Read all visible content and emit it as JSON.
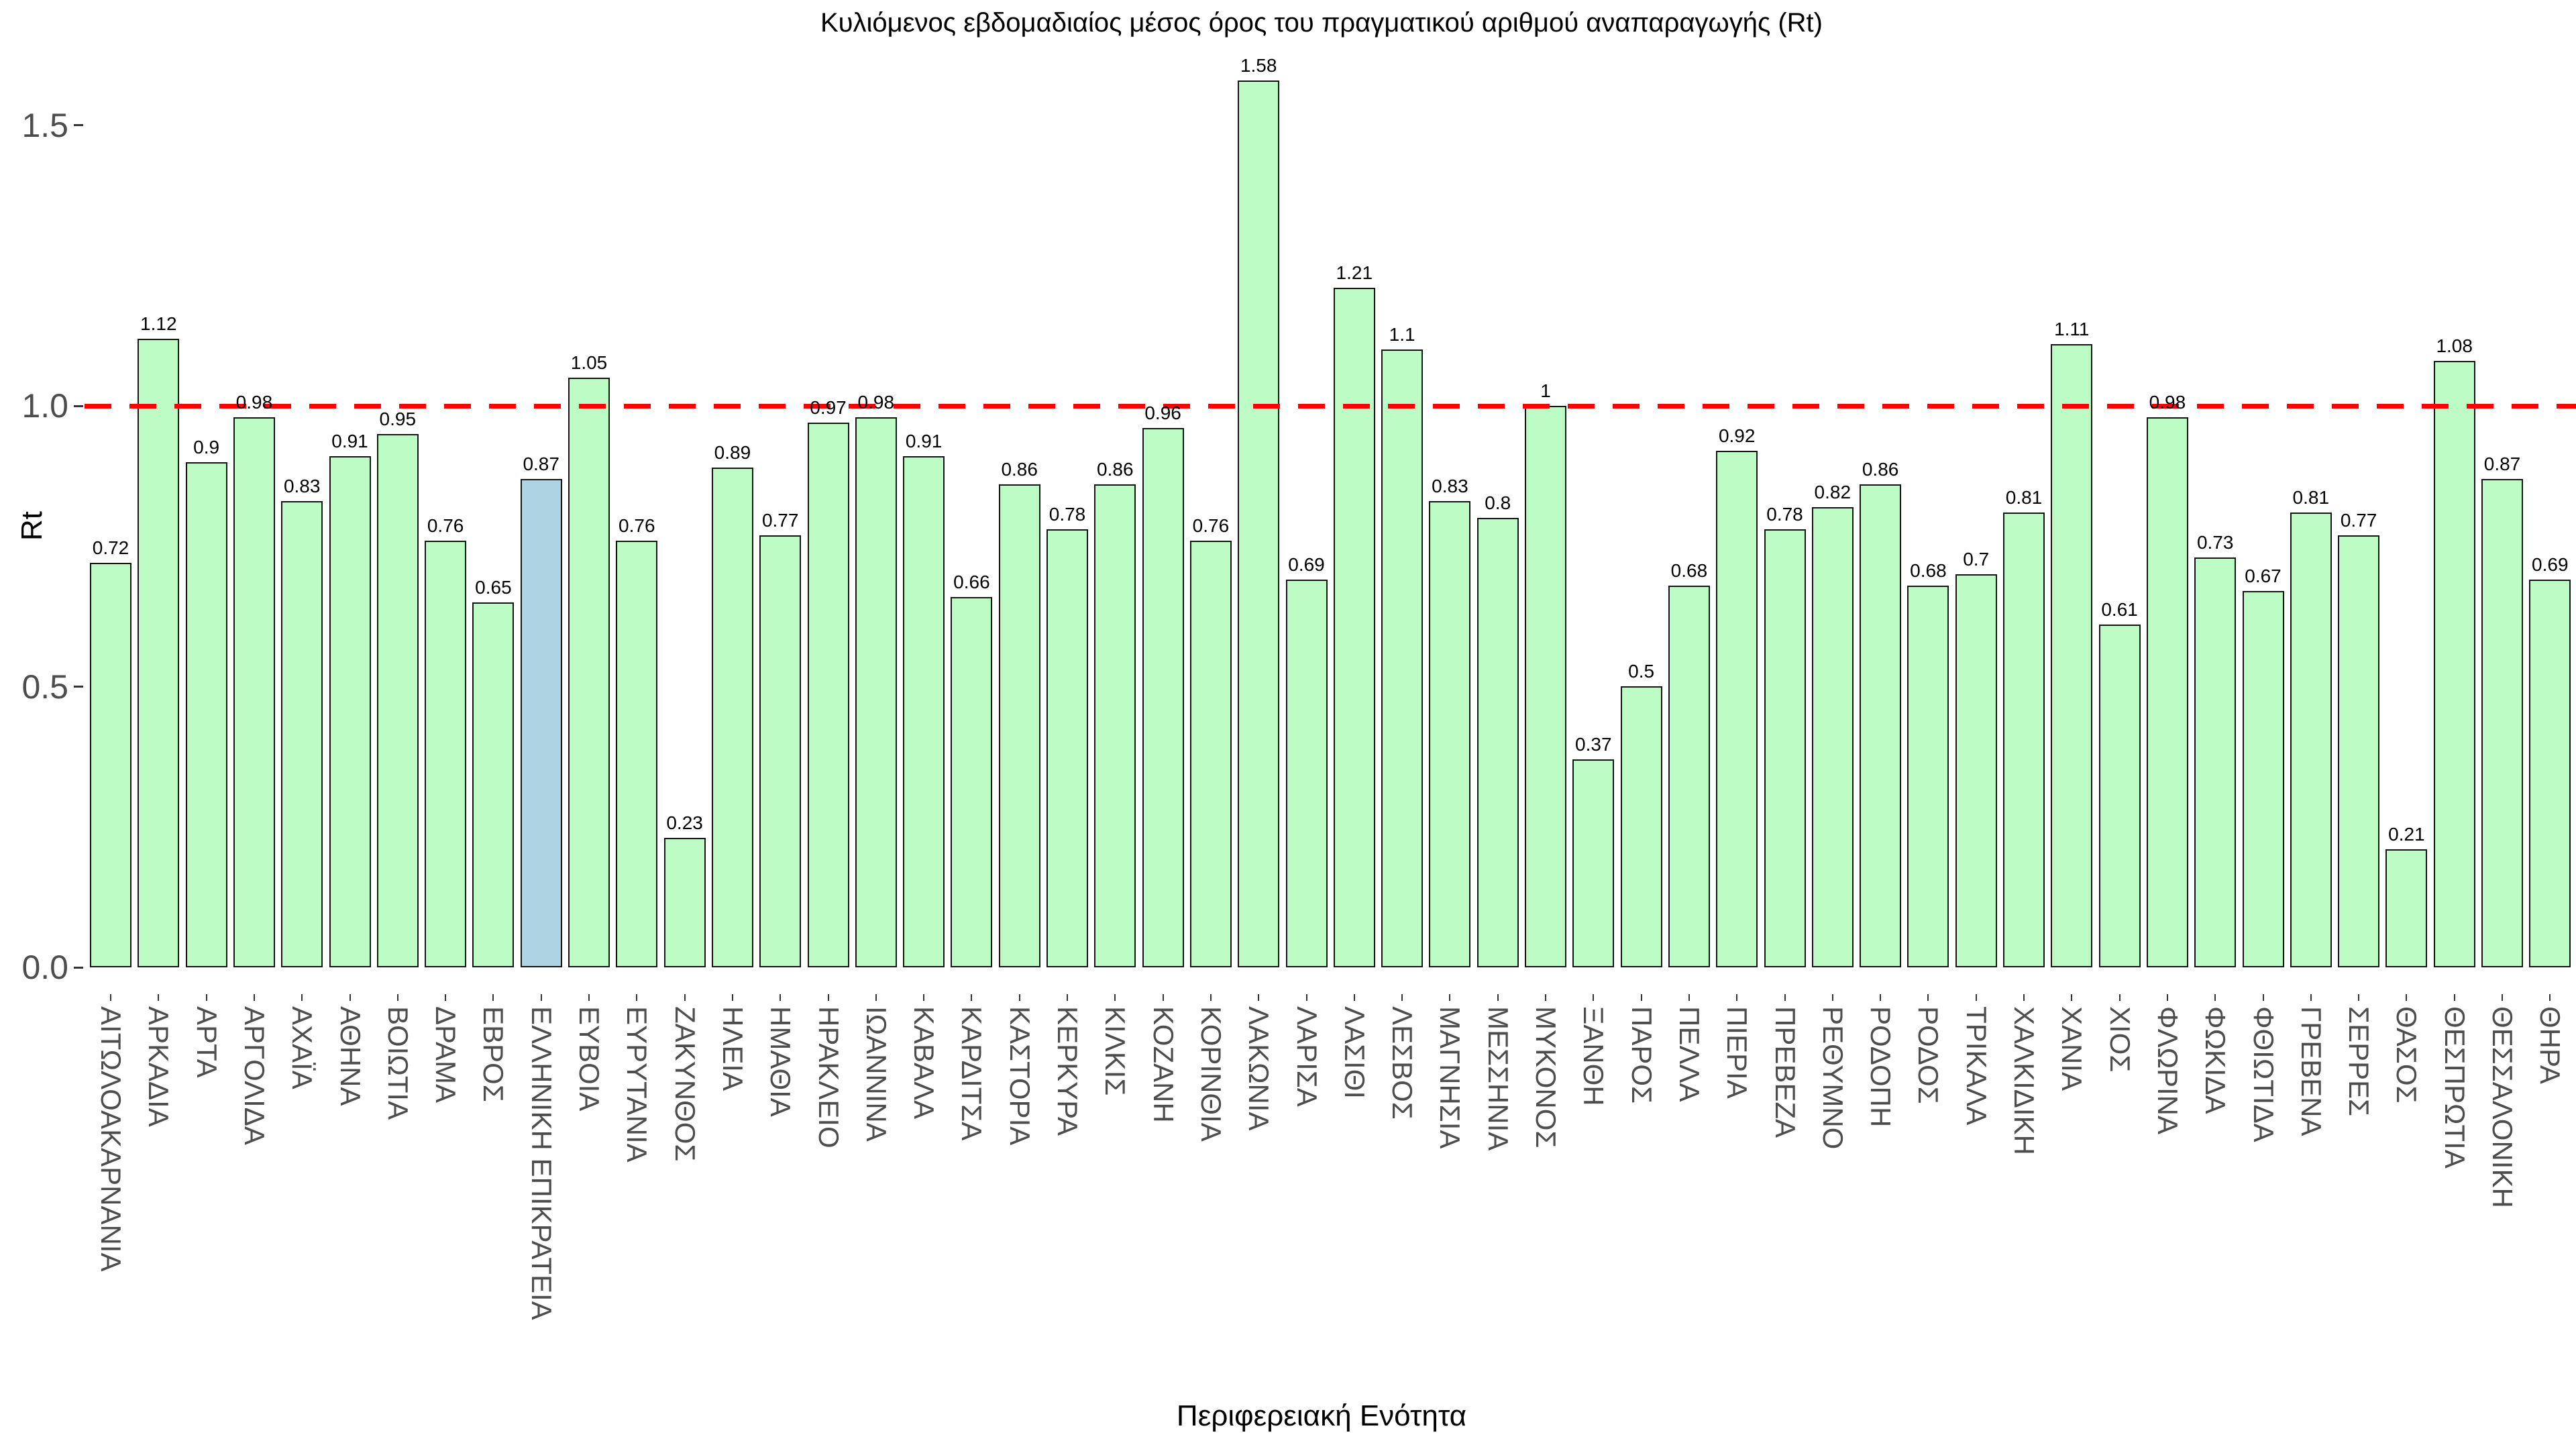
{
  "chart_data": {
    "type": "bar",
    "title": "Κυλιόμενος εβδομαδιαίος μέσος όρος του πραγματικού αριθμού αναπαραγωγής (Rt)",
    "xlabel": "Περιφερειακή Ενότητα",
    "ylabel": "Rt",
    "categories": [
      "ΑΙΤΩΛΟΑΚΑΡΝΑΝΙΑ",
      "ΑΡΚΑΔΙΑ",
      "ΑΡΤΑ",
      "ΑΡΓΟΛΙΔΑ",
      "ΑΧΑΪΑ",
      "ΑΘΗΝΑ",
      "ΒΟΙΩΤΙΑ",
      "ΔΡΑΜΑ",
      "ΕΒΡΟΣ",
      "ΕΛΛΗΝΙΚΗ ΕΠΙΚΡΑΤΕΙΑ",
      "ΕΥΒΟΙΑ",
      "ΕΥΡΥΤΑΝΙΑ",
      "ΖΑΚΥΝΘΟΣ",
      "ΗΛΕΙΑ",
      "ΗΜΑΘΙΑ",
      "ΗΡΑΚΛΕΙΟ",
      "ΙΩΑΝΝΙΝΑ",
      "ΚΑΒΑΛΑ",
      "ΚΑΡΔΙΤΣΑ",
      "ΚΑΣΤΟΡΙΑ",
      "ΚΕΡΚΥΡΑ",
      "ΚΙΛΚΙΣ",
      "ΚΟΖΑΝΗ",
      "ΚΟΡΙΝΘΙΑ",
      "ΛΑΚΩΝΙΑ",
      "ΛΑΡΙΣΑ",
      "ΛΑΣΙΘΙ",
      "ΛΕΣΒΟΣ",
      "ΜΑΓΝΗΣΙΑ",
      "ΜΕΣΣΗΝΙΑ",
      "ΜΥΚΟΝΟΣ",
      "ΞΑΝΘΗ",
      "ΠΑΡΟΣ",
      "ΠΕΛΛΑ",
      "ΠΙΕΡΙΑ",
      "ΠΡΕΒΕΖΑ",
      "ΡΕΘΥΜΝΟ",
      "ΡΟΔΟΠΗ",
      "ΡΟΔΟΣ",
      "ΤΡΙΚΑΛΑ",
      "ΧΑΛΚΙΔΙΚΗ",
      "ΧΑΝΙΑ",
      "ΧΙΟΣ",
      "ΦΛΩΡΙΝΑ",
      "ΦΩΚΙΔΑ",
      "ΦΘΙΩΤΙΔΑ",
      "ΓΡΕΒΕΝΑ",
      "ΣΕΡΡΕΣ",
      "ΘΑΣΟΣ",
      "ΘΕΣΠΡΩΤΙΑ",
      "ΘΕΣΣΑΛΟΝΙΚΗ",
      "ΘΗΡΑ"
    ],
    "values": [
      0.72,
      1.12,
      0.9,
      0.98,
      0.83,
      0.91,
      0.95,
      0.76,
      0.65,
      0.87,
      1.05,
      0.76,
      0.23,
      0.89,
      0.77,
      0.97,
      0.98,
      0.91,
      0.66,
      0.86,
      0.78,
      0.86,
      0.96,
      0.76,
      1.58,
      0.69,
      1.21,
      1.1,
      0.83,
      0.8,
      1,
      0.37,
      0.5,
      0.68,
      0.92,
      0.78,
      0.82,
      0.86,
      0.68,
      0.7,
      0.81,
      1.11,
      0.61,
      0.98,
      0.73,
      0.67,
      0.81,
      0.77,
      0.21,
      1.08,
      0.87,
      0.69
    ],
    "highlight_index": 9,
    "highlight_category": "ΕΛΛΗΝΙΚΗ ΕΠΙΚΡΑΤΕΙΑ",
    "ylim": [
      0,
      1.65
    ],
    "ytick_values": [
      0,
      0.5,
      1,
      1.5
    ],
    "ytick_labels": [
      "0.0",
      "0.5",
      "1.0",
      "1.5"
    ],
    "grid": false,
    "legend": "none",
    "value_labels": true,
    "reference_line": {
      "y": 1.0,
      "color": "#ff0000",
      "style": "dashed"
    },
    "colors": {
      "bar_fill": "#befcc6",
      "bar_border": "#141414",
      "highlight_fill": "#aed4e3",
      "reference_line": "#ff0000",
      "tick_text": "#4d4d4d",
      "text": "#000000",
      "background": "#ffffff"
    }
  }
}
